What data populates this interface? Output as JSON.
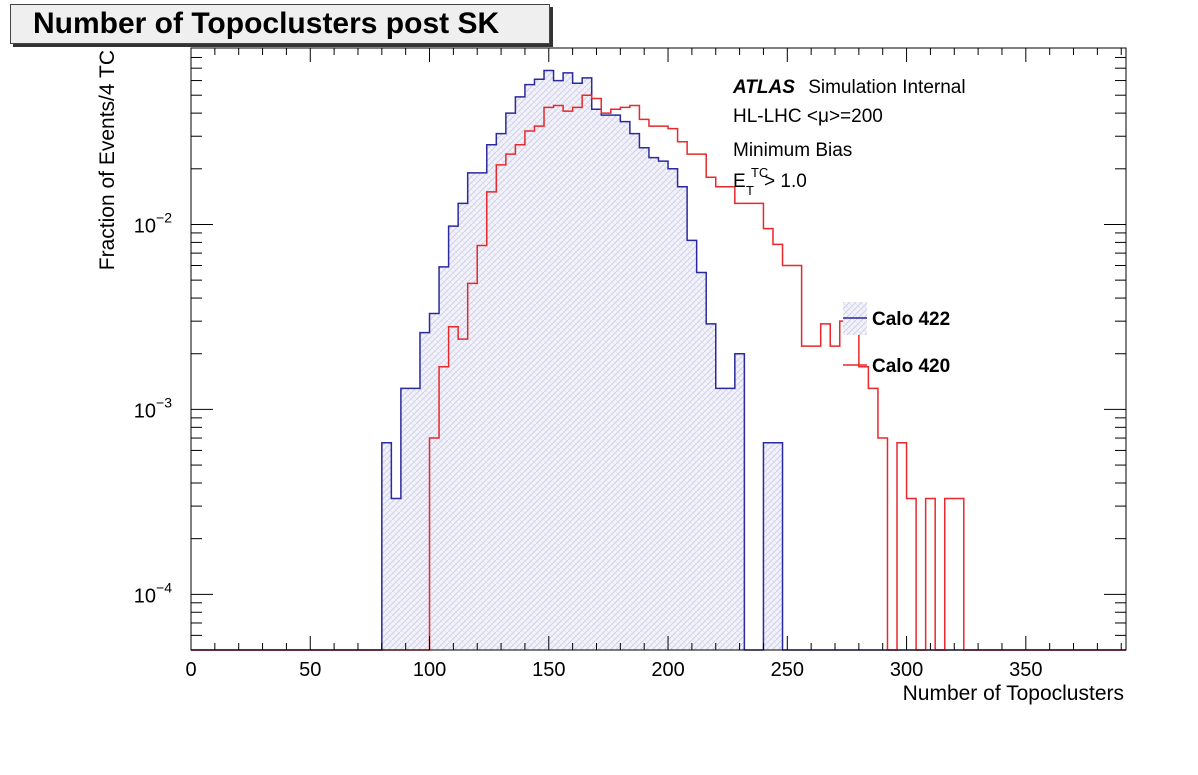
{
  "chart_data": {
    "type": "histogram",
    "title": "Number of Topoclusters post SK",
    "xlabel": "Number of Topoclusters",
    "ylabel": "Fraction of Events/4 TC",
    "xlim": [
      0,
      392
    ],
    "ylim": [
      5e-05,
      0.09
    ],
    "y_scale": "log",
    "x_ticks": [
      "0",
      "50",
      "100",
      "150",
      "200",
      "250",
      "300",
      "350"
    ],
    "y_ticks": [
      {
        "base": "10",
        "exp": "−2",
        "value": 0.01
      },
      {
        "base": "10",
        "exp": "−3",
        "value": 0.001
      },
      {
        "base": "10",
        "exp": "−4",
        "value": 0.0001
      }
    ],
    "bin_width": 4,
    "annotations": {
      "atlas": "ATLAS",
      "atlas_suffix": "Simulation Internal",
      "line2": "HL-LHC <μ>=200",
      "line3": "Minimum Bias",
      "cut_main": "E",
      "cut_sup": "TC",
      "cut_sub": "T",
      "cut_rest": " > 1.0"
    },
    "legend_position": "right-middle",
    "series": [
      {
        "name": "Calo 422",
        "color": "#2a2a9c",
        "fill": "hatched",
        "bins": [
          {
            "x": 80,
            "y": 0.00066
          },
          {
            "x": 84,
            "y": 0.00033
          },
          {
            "x": 88,
            "y": 0.0013
          },
          {
            "x": 92,
            "y": 0.0013
          },
          {
            "x": 96,
            "y": 0.0026
          },
          {
            "x": 100,
            "y": 0.0033
          },
          {
            "x": 104,
            "y": 0.0059
          },
          {
            "x": 108,
            "y": 0.0098
          },
          {
            "x": 112,
            "y": 0.013
          },
          {
            "x": 116,
            "y": 0.019
          },
          {
            "x": 120,
            "y": 0.019
          },
          {
            "x": 124,
            "y": 0.027
          },
          {
            "x": 128,
            "y": 0.031
          },
          {
            "x": 132,
            "y": 0.04
          },
          {
            "x": 136,
            "y": 0.049
          },
          {
            "x": 140,
            "y": 0.057
          },
          {
            "x": 144,
            "y": 0.061
          },
          {
            "x": 148,
            "y": 0.068
          },
          {
            "x": 152,
            "y": 0.06
          },
          {
            "x": 156,
            "y": 0.066
          },
          {
            "x": 160,
            "y": 0.058
          },
          {
            "x": 164,
            "y": 0.062
          },
          {
            "x": 168,
            "y": 0.042
          },
          {
            "x": 172,
            "y": 0.039
          },
          {
            "x": 176,
            "y": 0.039
          },
          {
            "x": 180,
            "y": 0.036
          },
          {
            "x": 184,
            "y": 0.031
          },
          {
            "x": 188,
            "y": 0.026
          },
          {
            "x": 192,
            "y": 0.023
          },
          {
            "x": 196,
            "y": 0.022
          },
          {
            "x": 200,
            "y": 0.02
          },
          {
            "x": 204,
            "y": 0.016
          },
          {
            "x": 208,
            "y": 0.0082
          },
          {
            "x": 212,
            "y": 0.0055
          },
          {
            "x": 216,
            "y": 0.0029
          },
          {
            "x": 220,
            "y": 0.0013
          },
          {
            "x": 224,
            "y": 0.0013
          },
          {
            "x": 228,
            "y": 0.002
          },
          {
            "x": 232,
            "y": 0
          },
          {
            "x": 236,
            "y": 0
          },
          {
            "x": 240,
            "y": 0.00066
          },
          {
            "x": 244,
            "y": 0.00066
          }
        ]
      },
      {
        "name": "Calo 420",
        "color": "#e8282a",
        "fill": "none",
        "bins": [
          {
            "x": 100,
            "y": 0.0007
          },
          {
            "x": 104,
            "y": 0.0017
          },
          {
            "x": 108,
            "y": 0.0028
          },
          {
            "x": 112,
            "y": 0.0024
          },
          {
            "x": 116,
            "y": 0.0048
          },
          {
            "x": 120,
            "y": 0.0077
          },
          {
            "x": 124,
            "y": 0.015
          },
          {
            "x": 128,
            "y": 0.021
          },
          {
            "x": 132,
            "y": 0.024
          },
          {
            "x": 136,
            "y": 0.027
          },
          {
            "x": 140,
            "y": 0.032
          },
          {
            "x": 144,
            "y": 0.034
          },
          {
            "x": 148,
            "y": 0.043
          },
          {
            "x": 152,
            "y": 0.044
          },
          {
            "x": 156,
            "y": 0.041
          },
          {
            "x": 160,
            "y": 0.043
          },
          {
            "x": 164,
            "y": 0.05
          },
          {
            "x": 168,
            "y": 0.048
          },
          {
            "x": 172,
            "y": 0.04
          },
          {
            "x": 176,
            "y": 0.042
          },
          {
            "x": 180,
            "y": 0.043
          },
          {
            "x": 184,
            "y": 0.044
          },
          {
            "x": 188,
            "y": 0.037
          },
          {
            "x": 192,
            "y": 0.034
          },
          {
            "x": 196,
            "y": 0.034
          },
          {
            "x": 200,
            "y": 0.033
          },
          {
            "x": 204,
            "y": 0.028
          },
          {
            "x": 208,
            "y": 0.024
          },
          {
            "x": 212,
            "y": 0.024
          },
          {
            "x": 216,
            "y": 0.018
          },
          {
            "x": 220,
            "y": 0.016
          },
          {
            "x": 224,
            "y": 0.016
          },
          {
            "x": 228,
            "y": 0.013
          },
          {
            "x": 232,
            "y": 0.013
          },
          {
            "x": 236,
            "y": 0.013
          },
          {
            "x": 240,
            "y": 0.0095
          },
          {
            "x": 244,
            "y": 0.0078
          },
          {
            "x": 248,
            "y": 0.006
          },
          {
            "x": 252,
            "y": 0.006
          },
          {
            "x": 256,
            "y": 0.0022
          },
          {
            "x": 260,
            "y": 0.0022
          },
          {
            "x": 264,
            "y": 0.0029
          },
          {
            "x": 268,
            "y": 0.0022
          },
          {
            "x": 272,
            "y": 0.003
          },
          {
            "x": 276,
            "y": 0.0027
          },
          {
            "x": 280,
            "y": 0.0017
          },
          {
            "x": 284,
            "y": 0.0013
          },
          {
            "x": 288,
            "y": 0.0007
          },
          {
            "x": 292,
            "y": 0
          },
          {
            "x": 296,
            "y": 0.00066
          },
          {
            "x": 300,
            "y": 0.00033
          },
          {
            "x": 304,
            "y": 0
          },
          {
            "x": 308,
            "y": 0.00033
          },
          {
            "x": 312,
            "y": 0
          },
          {
            "x": 316,
            "y": 0.00033
          },
          {
            "x": 320,
            "y": 0.00033
          }
        ]
      }
    ]
  }
}
